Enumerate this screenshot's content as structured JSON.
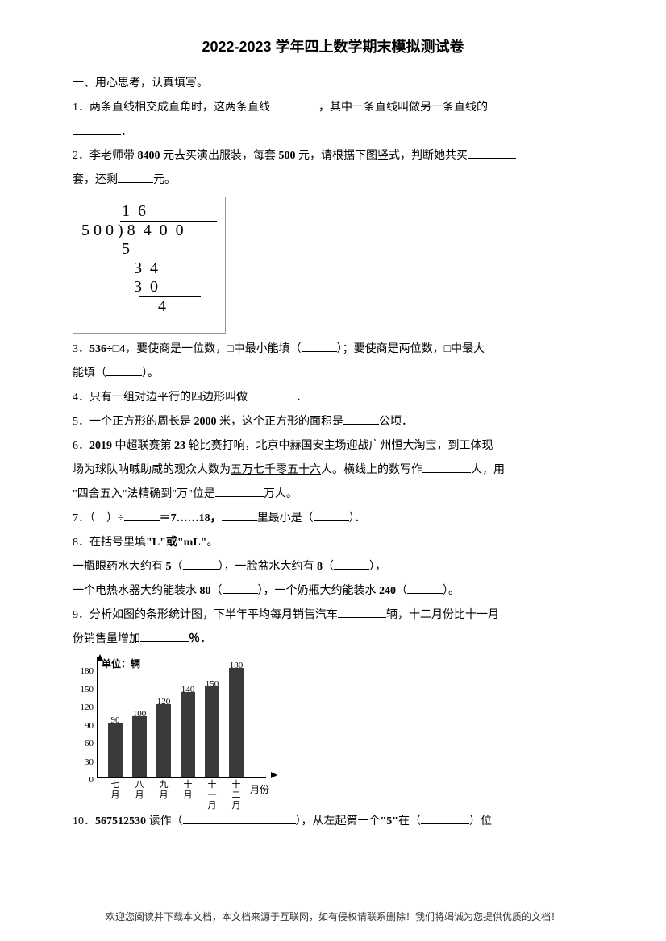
{
  "title": "2022-2023 学年四上数学期末模拟测试卷",
  "section1": "一、用心思考，认真填写。",
  "q1a": "1．两条直线相交成直角时，这两条直线",
  "q1b": "，其中一条直线叫做另一条直线的",
  "q1c": "．",
  "q2a": "2．李老师带 ",
  "q2amt": "8400",
  "q2b": " 元去买演出服装，每套 ",
  "q2price": "500",
  "q2c": " 元，请根据下图竖式，判断她共买",
  "q2d": "套，还剩",
  "q2e": "元。",
  "longdiv": {
    "r1": "          1  6",
    "r2": "5 0 0 ) 8  4  0  0",
    "r3": "          5",
    "r4": "          ────────",
    "r5": "             3  4",
    "r6": "             3  0",
    "r7": "             ─────",
    "r8": "                   4"
  },
  "q3a": "3．",
  "q3expr": "536÷□4",
  "q3b": "，要使商是一位数，□中最小能填（",
  "q3c": "）；要使商是两位数，□中最大",
  "q3d": "能填（",
  "q3e": "）。",
  "q4a": "4．只有一组对边平行的四边形叫做",
  "q4b": "．",
  "q5a": "5．一个正方形的周长是 ",
  "q5v": "2000",
  "q5b": " 米，这个正方形的面积是",
  "q5c": "公顷．",
  "q6a": "6．",
  "q6y": "2019",
  "q6b": " 中超联赛第 ",
  "q6r": "23",
  "q6c": " 轮比赛打响，北京中赫国安主场迎战广州恒大淘宝，到工体现",
  "q6d": "场为球队呐喊助威的观众人数为",
  "q6u": "五万七千零五十六",
  "q6e": "人。横线上的数写作",
  "q6f": "人，用",
  "q6g": "\"四舍五入\"法精确到\"万\"位是",
  "q6h": "万人。",
  "q7a": "7．（　）÷",
  "q7b": "＝7……18，",
  "q7c": "里最小是（",
  "q7d": "）．",
  "q8a": "8．在括号里填",
  "q8u": "\"L\"或\"mL\"",
  "q8b": "。",
  "q8l1a": "一瓶眼药水大约有 ",
  "q8l1v1": "5",
  "q8l1b": "（",
  "q8l1c": "），一脸盆水大约有 ",
  "q8l1v2": "8",
  "q8l1d": "（",
  "q8l1e": "），",
  "q8l2a": "一个电热水器大约能装水 ",
  "q8l2v1": "80",
  "q8l2b": "（",
  "q8l2c": "），一个奶瓶大约能装水 ",
  "q8l2v2": "240",
  "q8l2d": "（",
  "q8l2e": "）。",
  "q9a": "9．分析如图的条形统计图，下半年平均每月销售汽车",
  "q9b": "辆，十二月份比十一月",
  "q9c": "份销售量增加",
  "q9d": "％．",
  "chart": {
    "type": "bar",
    "y_label": "单位：辆",
    "x_label": "月份",
    "categories": [
      "七月",
      "八月",
      "九月",
      "十月",
      "十一月",
      "十二月"
    ],
    "values": [
      90,
      100,
      120,
      140,
      150,
      180
    ],
    "bar_color": "#3a3a3a",
    "ymax": 180,
    "yticks": [
      0,
      30,
      60,
      90,
      120,
      150,
      180
    ],
    "background_color": "#ffffff",
    "axis_color": "#000000",
    "label_fontsize": 11
  },
  "q10a": "10．",
  "q10n": "567512530",
  "q10b": " 读作（",
  "q10c": "），从左起第一个",
  "q10q": "\"5\"",
  "q10d": "在（",
  "q10e": "）位",
  "footer": "欢迎您阅读并下载本文档，本文档来源于互联网，如有侵权请联系删除！我们将竭诚为您提供优质的文档！"
}
